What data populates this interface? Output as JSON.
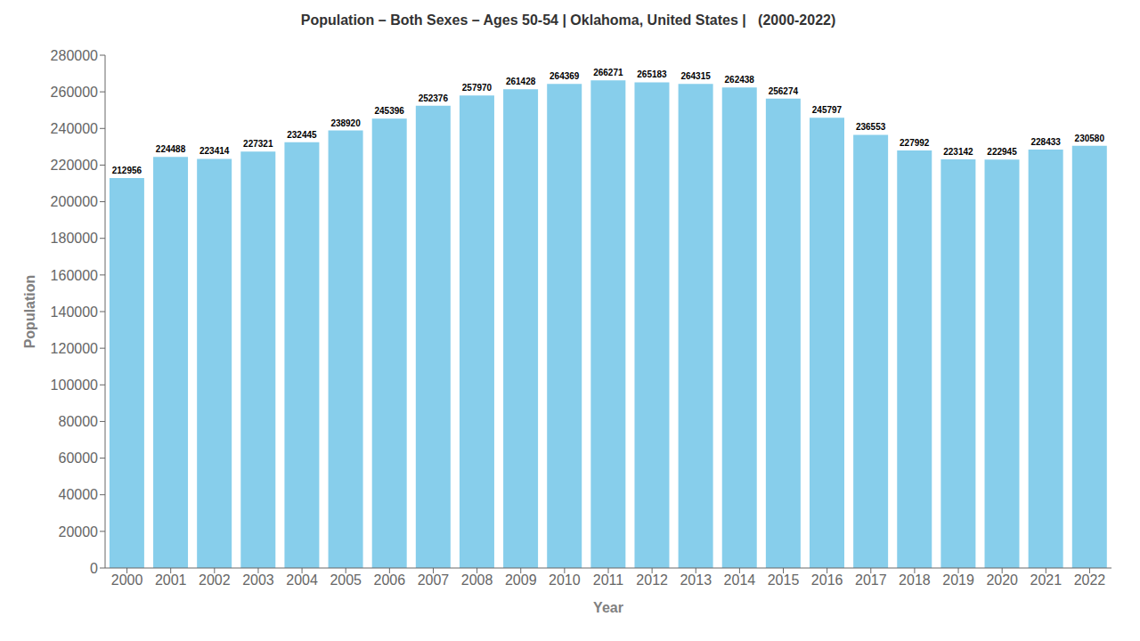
{
  "chart_data": {
    "type": "bar",
    "title": "Population – Both Sexes – Ages 50-54 | Oklahoma, United States |   (2000-2022)",
    "x_label": "Year",
    "y_label": "Population",
    "categories": [
      "2000",
      "2001",
      "2002",
      "2003",
      "2004",
      "2005",
      "2006",
      "2007",
      "2008",
      "2009",
      "2010",
      "2011",
      "2012",
      "2013",
      "2014",
      "2015",
      "2016",
      "2017",
      "2018",
      "2019",
      "2020",
      "2021",
      "2022"
    ],
    "values": [
      212956,
      224488,
      223414,
      227321,
      232445,
      238920,
      245396,
      252376,
      257970,
      261428,
      264369,
      266271,
      265183,
      264315,
      262438,
      256274,
      245797,
      236553,
      227992,
      223142,
      222945,
      228433,
      230580
    ],
    "color": "#87CEEB",
    "ylim": [
      0,
      280000
    ],
    "yticks": [
      0,
      20000,
      40000,
      60000,
      80000,
      100000,
      120000,
      140000,
      160000,
      180000,
      200000,
      220000,
      240000,
      260000,
      280000
    ],
    "grid": false,
    "data_labels": true
  }
}
